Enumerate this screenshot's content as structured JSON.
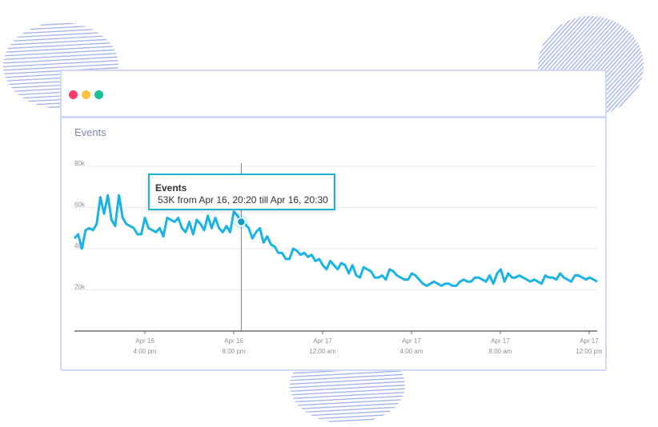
{
  "window": {
    "controls": [
      {
        "name": "close",
        "color": "#fb3b6a"
      },
      {
        "name": "minimize",
        "color": "#fdc23a"
      },
      {
        "name": "zoom",
        "color": "#13c295"
      }
    ]
  },
  "colors": {
    "line": "#1bb3e6",
    "accent_border": "#cfd8fb",
    "decor": "#9fb0f2"
  },
  "chart_data": {
    "type": "line",
    "title": "Events",
    "y_ticks": [
      "80k",
      "60k",
      "40k",
      "20k"
    ],
    "ylim": [
      0,
      80000
    ],
    "x_ticks": [
      {
        "date": "Apr 16",
        "time": "4:00 pm"
      },
      {
        "date": "Apr 16",
        "time": "8:00 pm"
      },
      {
        "date": "Apr 17",
        "time": "12:00 am"
      },
      {
        "date": "Apr 17",
        "time": "4:00 am"
      },
      {
        "date": "Apr 17",
        "time": "8:00 am"
      },
      {
        "date": "Apr 17",
        "time": "12:00 pm"
      }
    ],
    "x": [
      "Apr 16 12:50",
      "Apr 16 13:00",
      "Apr 16 13:10",
      "Apr 16 13:20",
      "Apr 16 13:30",
      "Apr 16 13:40",
      "Apr 16 13:50",
      "Apr 16 14:00",
      "Apr 16 14:10",
      "Apr 16 14:20",
      "Apr 16 14:30",
      "Apr 16 14:40",
      "Apr 16 14:50",
      "Apr 16 15:00",
      "Apr 16 15:10",
      "Apr 16 15:20",
      "Apr 16 15:30",
      "Apr 16 15:40",
      "Apr 16 15:50",
      "Apr 16 16:00",
      "Apr 16 16:10",
      "Apr 16 16:20",
      "Apr 16 16:30",
      "Apr 16 16:40",
      "Apr 16 16:50",
      "Apr 16 17:00",
      "Apr 16 17:10",
      "Apr 16 17:20",
      "Apr 16 17:30",
      "Apr 16 17:40",
      "Apr 16 17:50",
      "Apr 16 18:00",
      "Apr 16 18:10",
      "Apr 16 18:20",
      "Apr 16 18:30",
      "Apr 16 18:40",
      "Apr 16 18:50",
      "Apr 16 19:00",
      "Apr 16 19:10",
      "Apr 16 19:20",
      "Apr 16 19:30",
      "Apr 16 19:40",
      "Apr 16 19:50",
      "Apr 16 20:00",
      "Apr 16 20:10",
      "Apr 16 20:20",
      "Apr 16 20:30",
      "Apr 16 20:40",
      "Apr 16 20:50",
      "Apr 16 21:00",
      "Apr 16 21:10",
      "Apr 16 21:20",
      "Apr 16 21:30",
      "Apr 16 21:40",
      "Apr 16 21:50",
      "Apr 16 22:00",
      "Apr 16 22:10",
      "Apr 16 22:20",
      "Apr 16 22:30",
      "Apr 16 22:40",
      "Apr 16 22:50",
      "Apr 16 23:00",
      "Apr 16 23:10",
      "Apr 16 23:20",
      "Apr 16 23:30",
      "Apr 16 23:40",
      "Apr 16 23:50",
      "Apr 17 00:00",
      "Apr 17 00:10",
      "Apr 17 00:20",
      "Apr 17 00:30",
      "Apr 17 00:40",
      "Apr 17 00:50",
      "Apr 17 01:00",
      "Apr 17 01:10",
      "Apr 17 01:20",
      "Apr 17 01:30",
      "Apr 17 01:40",
      "Apr 17 01:50",
      "Apr 17 02:00",
      "Apr 17 02:10",
      "Apr 17 02:20",
      "Apr 17 02:30",
      "Apr 17 02:40",
      "Apr 17 02:50",
      "Apr 17 03:00",
      "Apr 17 03:10",
      "Apr 17 03:20",
      "Apr 17 03:30",
      "Apr 17 03:40",
      "Apr 17 03:50",
      "Apr 17 04:00",
      "Apr 17 04:10",
      "Apr 17 04:20",
      "Apr 17 04:30",
      "Apr 17 04:40",
      "Apr 17 04:50",
      "Apr 17 05:00",
      "Apr 17 05:10",
      "Apr 17 05:20",
      "Apr 17 05:30",
      "Apr 17 05:40",
      "Apr 17 05:50",
      "Apr 17 06:00",
      "Apr 17 06:10",
      "Apr 17 06:20",
      "Apr 17 06:30",
      "Apr 17 06:40",
      "Apr 17 06:50",
      "Apr 17 07:00",
      "Apr 17 07:10",
      "Apr 17 07:20",
      "Apr 17 07:30",
      "Apr 17 07:40",
      "Apr 17 07:50",
      "Apr 17 08:00",
      "Apr 17 08:10",
      "Apr 17 08:20",
      "Apr 17 08:30",
      "Apr 17 08:40",
      "Apr 17 08:50",
      "Apr 17 09:00",
      "Apr 17 09:10",
      "Apr 17 09:20",
      "Apr 17 09:30",
      "Apr 17 09:40",
      "Apr 17 09:50",
      "Apr 17 10:00",
      "Apr 17 10:10",
      "Apr 17 10:20",
      "Apr 17 10:30",
      "Apr 17 10:40",
      "Apr 17 10:50",
      "Apr 17 11:00",
      "Apr 17 11:10",
      "Apr 17 11:20",
      "Apr 17 11:30",
      "Apr 17 11:40",
      "Apr 17 11:50",
      "Apr 17 12:00",
      "Apr 17 12:10",
      "Apr 17 12:20"
    ],
    "series": [
      {
        "values": [
          45000,
          47000,
          40000,
          49000,
          50000,
          49000,
          52000,
          65000,
          57000,
          66000,
          54000,
          51000,
          66000,
          55000,
          52000,
          51000,
          50000,
          47000,
          47000,
          55000,
          50000,
          49000,
          48000,
          50000,
          46000,
          55000,
          54000,
          53000,
          55000,
          50000,
          48000,
          53000,
          47000,
          54000,
          52000,
          49000,
          56000,
          50000,
          55000,
          50000,
          48000,
          51000,
          48000,
          58000,
          56000,
          53000,
          52000,
          50000,
          45000,
          48000,
          50000,
          43000,
          46000,
          42000,
          41000,
          38000,
          38000,
          35000,
          35000,
          40000,
          39000,
          37000,
          38000,
          36000,
          37000,
          34000,
          35000,
          32000,
          30000,
          34000,
          32000,
          30000,
          33000,
          32000,
          28000,
          32000,
          27000,
          26000,
          31000,
          30000,
          29000,
          26000,
          26000,
          27000,
          25000,
          30000,
          29000,
          27000,
          26000,
          25000,
          25000,
          28000,
          27000,
          25000,
          23000,
          22000,
          23000,
          24000,
          23000,
          22000,
          23000,
          23000,
          22000,
          22000,
          24000,
          25000,
          24000,
          24000,
          26000,
          26000,
          25000,
          24000,
          27000,
          23000,
          28000,
          30000,
          24000,
          28000,
          26000,
          26000,
          27000,
          26000,
          25000,
          24000,
          25000,
          24000,
          23000,
          27000,
          26000,
          26000,
          25000,
          28000,
          26000,
          25000,
          24000,
          27000,
          27000,
          26000,
          25000,
          26000,
          25000,
          24000
        ]
      }
    ],
    "tooltip": {
      "title": "Events",
      "text": "53K from Apr 16, 20:20 till Apr 16, 20:30",
      "x": "Apr 16 20:20",
      "value": 53000
    },
    "grid": true
  }
}
